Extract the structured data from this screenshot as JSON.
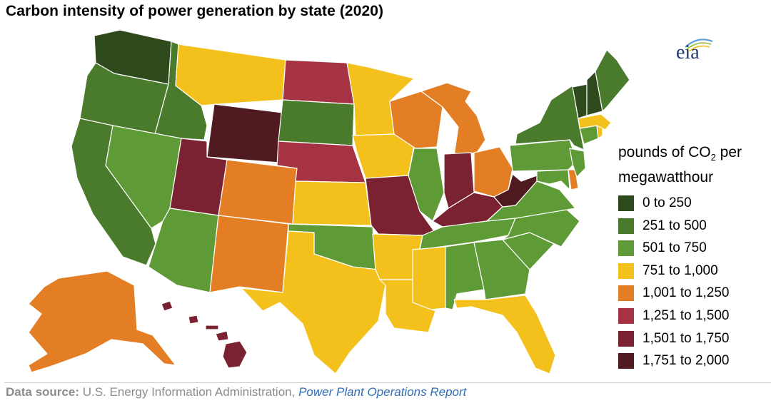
{
  "title": "Carbon intensity of power generation by state (2020)",
  "logo_text": "eia",
  "legend": {
    "title_prefix": "pounds of CO",
    "title_sub": "2",
    "title_suffix": " per",
    "title_line2": "megawatthour",
    "items": [
      {
        "label": "0 to 250",
        "color": "#2e4a1c"
      },
      {
        "label": "251 to 500",
        "color": "#4a7a2c"
      },
      {
        "label": "501 to 750",
        "color": "#5e9a35"
      },
      {
        "label": "751 to 1,000",
        "color": "#f4c01c"
      },
      {
        "label": "1,001 to 1,250",
        "color": "#e47e25"
      },
      {
        "label": "1,251 to 1,500",
        "color": "#a53343"
      },
      {
        "label": "1,501 to 1,750",
        "color": "#7a2232"
      },
      {
        "label": "1,751 to 2,000",
        "color": "#4f1a20"
      }
    ]
  },
  "states_by_class": {
    "0 to 250": [
      "WA",
      "VT",
      "NH"
    ],
    "251 to 500": [
      "OR",
      "ID",
      "CA",
      "SD",
      "NY",
      "ME"
    ],
    "501 to 750": [
      "NV",
      "AZ",
      "OK",
      "IL",
      "AL",
      "GA",
      "SC",
      "NC",
      "VA",
      "TN",
      "PA",
      "NJ",
      "CT",
      "MD"
    ],
    "751 to 1,000": [
      "MT",
      "MN",
      "IA",
      "KS",
      "TX",
      "AR",
      "LA",
      "MS",
      "FL",
      "MA",
      "RI"
    ],
    "1,001 to 1,250": [
      "CO",
      "NM",
      "WI",
      "MI",
      "OH",
      "AK",
      "DE"
    ],
    "1,251 to 1,500": [
      "ND",
      "NE"
    ],
    "1,501 to 1,750": [
      "UT",
      "MO",
      "IN",
      "KY",
      "HI"
    ],
    "1,751 to 2,000": [
      "WY",
      "WV"
    ]
  },
  "footer": {
    "label": "Data source:",
    "text": " U.S. Energy Information Administration, ",
    "link": "Power Plant Operations Report"
  }
}
